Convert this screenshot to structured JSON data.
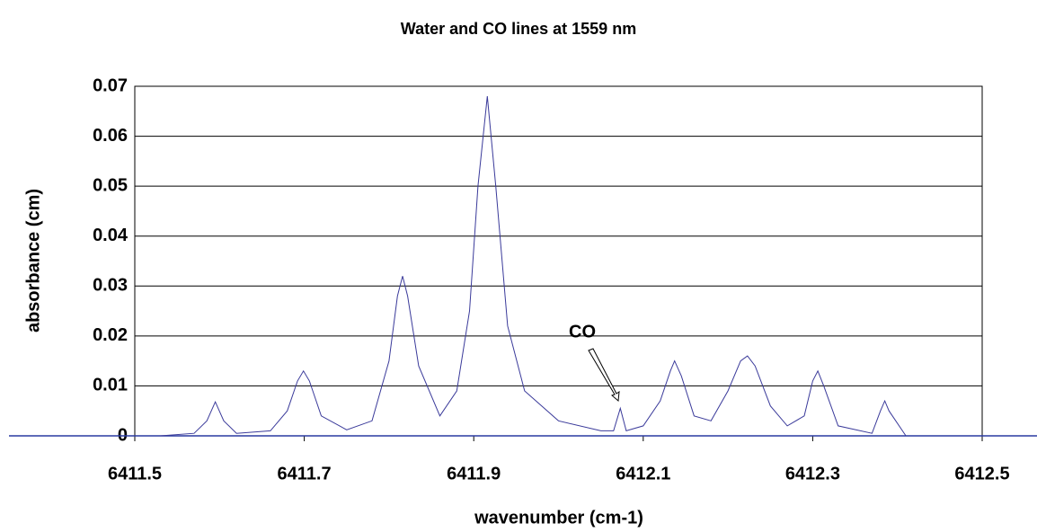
{
  "chart_data": {
    "type": "line",
    "title": "Water and CO lines at 1559 nm",
    "x_label": "wavenumber (cm-1)",
    "y_label": "absorbance (cm)",
    "annotation": "CO",
    "xlim": [
      6411.5,
      6412.5
    ],
    "xticks": [
      6411.5,
      6411.7,
      6411.9,
      6412.1,
      6412.3,
      6412.5
    ],
    "ylim": [
      0,
      0.07
    ],
    "yticks": [
      0,
      0.01,
      0.02,
      0.03,
      0.04,
      0.05,
      0.06,
      0.07
    ],
    "grid": true,
    "color": "#3a3a9a",
    "x": [
      6411.53,
      6411.57,
      6411.585,
      6411.595,
      6411.605,
      6411.62,
      6411.66,
      6411.68,
      6411.692,
      6411.699,
      6411.706,
      6411.72,
      6411.75,
      6411.78,
      6411.8,
      6411.81,
      6411.816,
      6411.822,
      6411.835,
      6411.86,
      6411.88,
      6411.895,
      6411.905,
      6411.916,
      6411.926,
      6411.94,
      6411.96,
      6412.0,
      6412.05,
      6412.065,
      6412.073,
      6412.08,
      6412.1,
      6412.12,
      6412.132,
      6412.137,
      6412.145,
      6412.16,
      6412.18,
      6412.2,
      6412.215,
      6412.223,
      6412.232,
      6412.25,
      6412.27,
      6412.29,
      6412.3,
      6412.306,
      6412.313,
      6412.33,
      6412.37,
      6412.38,
      6412.385,
      6412.39,
      6412.41
    ],
    "values": [
      0,
      0.0005,
      0.003,
      0.0068,
      0.003,
      0.0005,
      0.001,
      0.005,
      0.011,
      0.013,
      0.011,
      0.004,
      0.0012,
      0.003,
      0.015,
      0.028,
      0.032,
      0.028,
      0.014,
      0.004,
      0.009,
      0.025,
      0.05,
      0.068,
      0.05,
      0.022,
      0.009,
      0.003,
      0.001,
      0.001,
      0.0055,
      0.001,
      0.002,
      0.007,
      0.013,
      0.015,
      0.012,
      0.004,
      0.003,
      0.009,
      0.015,
      0.016,
      0.014,
      0.006,
      0.002,
      0.004,
      0.011,
      0.013,
      0.01,
      0.002,
      0.0005,
      0.005,
      0.007,
      0.005,
      0
    ]
  }
}
